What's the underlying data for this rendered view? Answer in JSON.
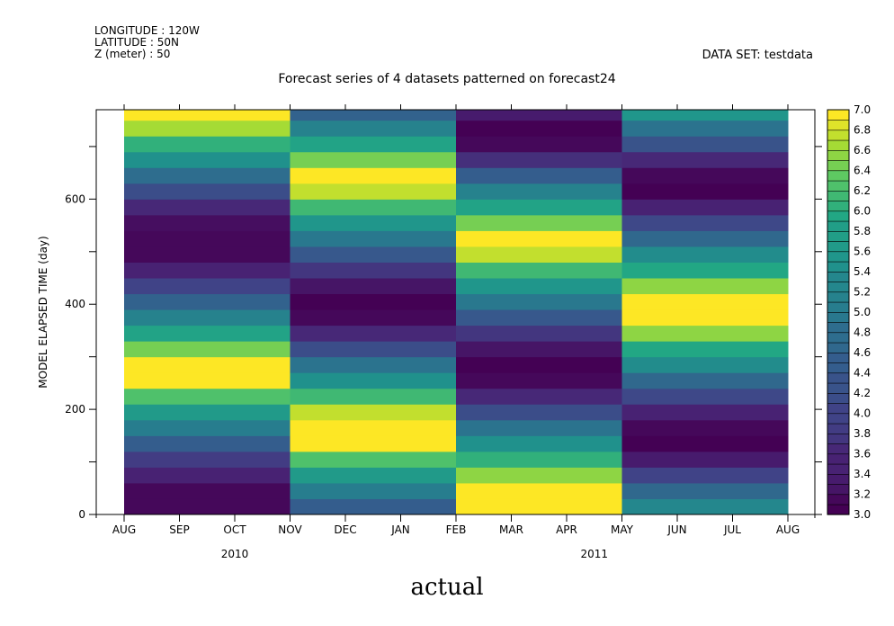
{
  "header": {
    "longitude": "LONGITUDE : 120W",
    "latitude": "LATITUDE : 50N",
    "z": "Z (meter) : 50",
    "dataset": "DATA SET: testdata"
  },
  "caption": "actual",
  "chart_data": {
    "type": "heatmap",
    "title": "Forecast series of 4 datasets patterned on forecast24",
    "ylabel": "MODEL ELAPSED TIME (day)",
    "xlabel": "",
    "x_tick_labels": [
      "AUG",
      "SEP",
      "OCT",
      "NOV",
      "DEC",
      "JAN",
      "FEB",
      "MAR",
      "APR",
      "MAY",
      "JUN",
      "JUL",
      "AUG"
    ],
    "year_labels": [
      {
        "label": "2010",
        "month_index": 2
      },
      {
        "label": "2011",
        "month_index": 8.5
      }
    ],
    "ylim": [
      0,
      770
    ],
    "y_ticks": [
      0,
      200,
      400,
      600
    ],
    "y_minor_step": 100,
    "row_height_days": 30,
    "colorbar": {
      "min": 3.0,
      "max": 7.0,
      "step": 0.1,
      "tick_labels": [
        "3.0",
        "3.2",
        "3.4",
        "3.6",
        "3.8",
        "4.0",
        "4.2",
        "4.4",
        "4.6",
        "4.8",
        "5.0",
        "5.2",
        "5.4",
        "5.6",
        "5.8",
        "6.0",
        "6.2",
        "6.4",
        "6.6",
        "6.8",
        "7.0"
      ]
    },
    "columns": [
      {
        "x_start": 0,
        "x_end": 3,
        "values": [
          3.1,
          3.1,
          3.5,
          3.9,
          4.5,
          5.1,
          5.7,
          6.3,
          7.0,
          7.0,
          6.5,
          5.9,
          5.2,
          4.6,
          4.0,
          3.5,
          3.1,
          3.1,
          3.2,
          3.6,
          4.2,
          4.8,
          5.5,
          6.1,
          6.7,
          7.0,
          6.8
        ]
      },
      {
        "x_start": 3,
        "x_end": 6,
        "values": [
          4.5,
          5.1,
          5.7,
          6.3,
          7.0,
          7.0,
          6.8,
          6.2,
          5.5,
          4.9,
          4.2,
          3.6,
          3.1,
          3.0,
          3.3,
          3.8,
          4.4,
          5.0,
          5.6,
          6.2,
          6.8,
          7.0,
          6.5,
          5.9,
          5.2,
          4.6,
          3.9,
          3.3,
          3.0
        ]
      },
      {
        "x_start": 6,
        "x_end": 9,
        "values": [
          7.0,
          7.0,
          6.6,
          6.1,
          5.5,
          4.9,
          4.2,
          3.6,
          3.1,
          3.0,
          3.3,
          3.8,
          4.4,
          5.0,
          5.6,
          6.2,
          6.8,
          7.0,
          6.5,
          5.9,
          5.2,
          4.5,
          3.7,
          3.1,
          3.0,
          3.4,
          4.0,
          4.5,
          5.0,
          5.5
        ]
      },
      {
        "x_start": 9,
        "x_end": 12,
        "values": [
          5.3,
          4.7,
          4.0,
          3.4,
          3.0,
          3.1,
          3.5,
          4.1,
          4.7,
          5.4,
          6.0,
          6.6,
          7.0,
          7.0,
          6.6,
          6.0,
          5.4,
          4.7,
          4.1,
          3.5,
          3.0,
          3.1,
          3.6,
          4.3,
          4.9,
          5.6,
          6.4,
          6.8,
          5.5,
          5.2
        ]
      }
    ]
  }
}
